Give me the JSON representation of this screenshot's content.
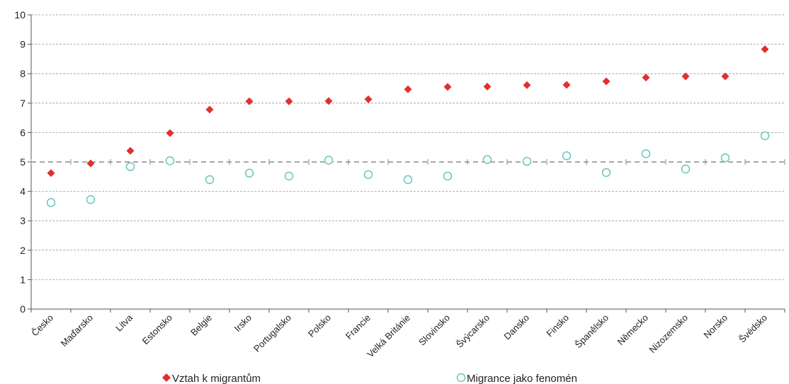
{
  "chart_data": {
    "type": "scatter",
    "categories": [
      "Česko",
      "Maďarsko",
      "Litva",
      "Estonsko",
      "Belgie",
      "Irsko",
      "Portugalsko",
      "Polsko",
      "Francie",
      "Velká Británie",
      "Slovinsko",
      "Švýcarsko",
      "Dansko",
      "Finsko",
      "Španělsko",
      "Německo",
      "Nizozemsko",
      "Norsko",
      "Švédsko"
    ],
    "ylim": [
      0,
      10
    ],
    "yticks": [
      0,
      1,
      2,
      3,
      4,
      5,
      6,
      7,
      8,
      9,
      10
    ],
    "reference_line": 5,
    "grid": true,
    "legend_position": "bottom",
    "series": [
      {
        "name": "Vztah k migrantům",
        "marker": "diamond",
        "color": "#e03030",
        "values": [
          4.62,
          4.95,
          5.38,
          5.98,
          6.78,
          7.06,
          7.06,
          7.07,
          7.13,
          7.47,
          7.55,
          7.56,
          7.61,
          7.62,
          7.74,
          7.87,
          7.91,
          7.91,
          8.83
        ]
      },
      {
        "name": "Migrance jako fenomén",
        "marker": "circle",
        "color": "#6cc4be",
        "values": [
          3.62,
          3.72,
          4.84,
          5.04,
          4.4,
          4.62,
          4.52,
          5.06,
          4.57,
          4.4,
          4.52,
          5.08,
          5.02,
          5.21,
          4.64,
          5.28,
          4.76,
          5.14,
          5.89
        ]
      }
    ]
  }
}
